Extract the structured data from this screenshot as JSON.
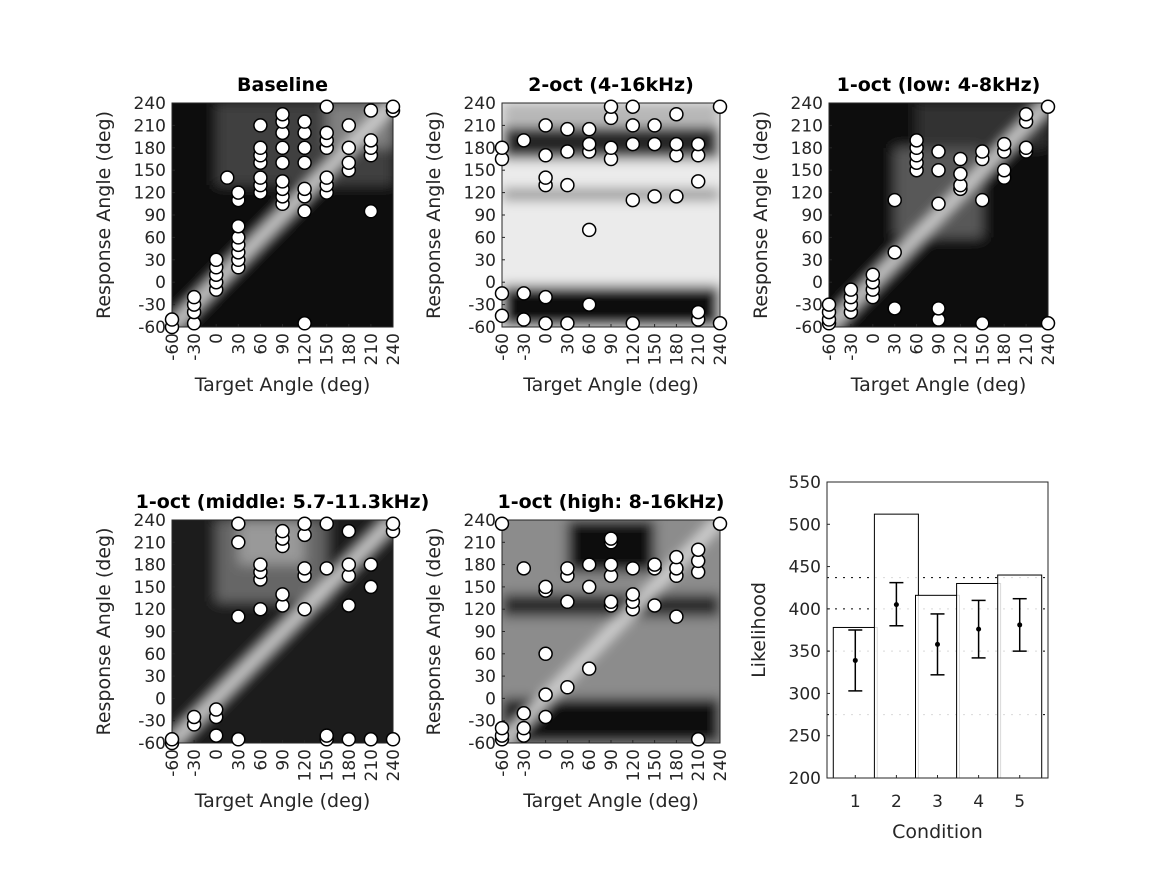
{
  "axis_labels": {
    "x": "Target Angle (deg)",
    "y": "Response Angle (deg)"
  },
  "chart_data": [
    {
      "type": "heatmap",
      "title": "Baseline",
      "xlabel": "Target Angle (deg)",
      "ylabel": "Response Angle (deg)",
      "xlim": [
        -60,
        240
      ],
      "ylim": [
        -60,
        240
      ],
      "ticks": [
        -60,
        -30,
        0,
        30,
        60,
        90,
        120,
        150,
        180,
        210,
        240
      ],
      "shading": [
        {
          "x": [
            -60,
            240
          ],
          "y": [
            -60,
            240
          ],
          "level": 0.05
        },
        {
          "x": [
            0,
            240
          ],
          "y": [
            130,
            240
          ],
          "level": 0.25
        },
        {
          "x": [
            150,
            240
          ],
          "y": [
            180,
            240
          ],
          "level": 0.5
        }
      ],
      "diagonal": true,
      "points": [
        [
          -60,
          -60
        ],
        [
          -60,
          -50
        ],
        [
          -30,
          -55
        ],
        [
          -30,
          -40
        ],
        [
          -30,
          -30
        ],
        [
          -30,
          -20
        ],
        [
          0,
          -10
        ],
        [
          0,
          0
        ],
        [
          0,
          10
        ],
        [
          0,
          20
        ],
        [
          0,
          30
        ],
        [
          15,
          140
        ],
        [
          30,
          20
        ],
        [
          30,
          30
        ],
        [
          30,
          40
        ],
        [
          30,
          50
        ],
        [
          30,
          60
        ],
        [
          30,
          75
        ],
        [
          30,
          110
        ],
        [
          30,
          120
        ],
        [
          60,
          120
        ],
        [
          60,
          130
        ],
        [
          60,
          140
        ],
        [
          60,
          160
        ],
        [
          60,
          170
        ],
        [
          60,
          180
        ],
        [
          60,
          210
        ],
        [
          90,
          105
        ],
        [
          90,
          115
        ],
        [
          90,
          125
        ],
        [
          90,
          135
        ],
        [
          90,
          160
        ],
        [
          90,
          180
        ],
        [
          90,
          200
        ],
        [
          90,
          215
        ],
        [
          90,
          225
        ],
        [
          120,
          95
        ],
        [
          120,
          115
        ],
        [
          120,
          125
        ],
        [
          120,
          160
        ],
        [
          120,
          180
        ],
        [
          120,
          200
        ],
        [
          120,
          215
        ],
        [
          120,
          -55
        ],
        [
          150,
          120
        ],
        [
          150,
          130
        ],
        [
          150,
          140
        ],
        [
          150,
          180
        ],
        [
          150,
          190
        ],
        [
          150,
          200
        ],
        [
          150,
          235
        ],
        [
          180,
          150
        ],
        [
          180,
          160
        ],
        [
          180,
          180
        ],
        [
          180,
          210
        ],
        [
          210,
          95
        ],
        [
          210,
          170
        ],
        [
          210,
          180
        ],
        [
          210,
          190
        ],
        [
          210,
          230
        ],
        [
          240,
          230
        ],
        [
          240,
          235
        ]
      ]
    },
    {
      "type": "heatmap",
      "title": "2-oct (4-16kHz)",
      "xlabel": "Target Angle (deg)",
      "ylabel": "Response Angle (deg)",
      "xlim": [
        -60,
        240
      ],
      "ylim": [
        -60,
        240
      ],
      "ticks": [
        -60,
        -30,
        0,
        30,
        60,
        90,
        120,
        150,
        180,
        210,
        240
      ],
      "shading": [
        {
          "x": [
            -60,
            240
          ],
          "y": [
            -60,
            240
          ],
          "level": 0.92
        },
        {
          "x": [
            -60,
            240
          ],
          "y": [
            -60,
            -5
          ],
          "level": 0.05
        },
        {
          "x": [
            -60,
            240
          ],
          "y": [
            165,
            210
          ],
          "level": 0.15
        },
        {
          "x": [
            -60,
            240
          ],
          "y": [
            110,
            125
          ],
          "level": 0.55
        },
        {
          "x": [
            -60,
            240
          ],
          "y": [
            215,
            240
          ],
          "level": 0.7
        }
      ],
      "diagonal": false,
      "points": [
        [
          -60,
          -45
        ],
        [
          -60,
          -15
        ],
        [
          -60,
          165
        ],
        [
          -60,
          180
        ],
        [
          -30,
          -50
        ],
        [
          -30,
          -15
        ],
        [
          -30,
          190
        ],
        [
          0,
          -55
        ],
        [
          0,
          -20
        ],
        [
          0,
          130
        ],
        [
          0,
          140
        ],
        [
          0,
          170
        ],
        [
          0,
          210
        ],
        [
          30,
          -55
        ],
        [
          30,
          130
        ],
        [
          30,
          175
        ],
        [
          30,
          205
        ],
        [
          60,
          -30
        ],
        [
          60,
          70
        ],
        [
          60,
          175
        ],
        [
          60,
          185
        ],
        [
          60,
          205
        ],
        [
          90,
          165
        ],
        [
          90,
          180
        ],
        [
          90,
          220
        ],
        [
          90,
          235
        ],
        [
          120,
          -55
        ],
        [
          120,
          110
        ],
        [
          120,
          185
        ],
        [
          120,
          210
        ],
        [
          120,
          235
        ],
        [
          150,
          115
        ],
        [
          150,
          185
        ],
        [
          150,
          210
        ],
        [
          180,
          115
        ],
        [
          180,
          170
        ],
        [
          180,
          185
        ],
        [
          180,
          225
        ],
        [
          210,
          -50
        ],
        [
          210,
          -40
        ],
        [
          210,
          135
        ],
        [
          210,
          170
        ],
        [
          210,
          185
        ],
        [
          240,
          -55
        ],
        [
          240,
          235
        ]
      ]
    },
    {
      "type": "heatmap",
      "title": "1-oct (low: 4-8kHz)",
      "xlabel": "Target Angle (deg)",
      "ylabel": "Response Angle (deg)",
      "xlim": [
        -60,
        240
      ],
      "ylim": [
        -60,
        240
      ],
      "ticks": [
        -60,
        -30,
        0,
        30,
        60,
        90,
        120,
        150,
        180,
        210,
        240
      ],
      "shading": [
        {
          "x": [
            -60,
            240
          ],
          "y": [
            -60,
            240
          ],
          "level": 0.05
        },
        {
          "x": [
            30,
            150
          ],
          "y": [
            60,
            180
          ],
          "level": 0.35
        },
        {
          "x": [
            60,
            240
          ],
          "y": [
            180,
            240
          ],
          "level": 0.2
        }
      ],
      "diagonal": true,
      "points": [
        [
          -60,
          -55
        ],
        [
          -60,
          -50
        ],
        [
          -60,
          -40
        ],
        [
          -60,
          -30
        ],
        [
          -30,
          -40
        ],
        [
          -30,
          -30
        ],
        [
          -30,
          -20
        ],
        [
          -30,
          -10
        ],
        [
          0,
          -20
        ],
        [
          0,
          -10
        ],
        [
          0,
          0
        ],
        [
          0,
          10
        ],
        [
          30,
          -35
        ],
        [
          30,
          40
        ],
        [
          30,
          110
        ],
        [
          60,
          150
        ],
        [
          60,
          160
        ],
        [
          60,
          170
        ],
        [
          60,
          180
        ],
        [
          60,
          190
        ],
        [
          90,
          -50
        ],
        [
          90,
          -35
        ],
        [
          90,
          105
        ],
        [
          90,
          150
        ],
        [
          90,
          175
        ],
        [
          120,
          125
        ],
        [
          120,
          130
        ],
        [
          120,
          145
        ],
        [
          120,
          165
        ],
        [
          150,
          -55
        ],
        [
          150,
          110
        ],
        [
          150,
          165
        ],
        [
          150,
          175
        ],
        [
          180,
          140
        ],
        [
          180,
          150
        ],
        [
          180,
          175
        ],
        [
          180,
          185
        ],
        [
          210,
          175
        ],
        [
          210,
          180
        ],
        [
          210,
          215
        ],
        [
          210,
          225
        ],
        [
          240,
          -55
        ],
        [
          240,
          235
        ]
      ]
    },
    {
      "type": "heatmap",
      "title": "1-oct (middle: 5.7-11.3kHz)",
      "xlabel": "Target Angle (deg)",
      "ylabel": "Response Angle (deg)",
      "xlim": [
        -60,
        240
      ],
      "ylim": [
        -60,
        240
      ],
      "ticks": [
        -60,
        -30,
        0,
        30,
        60,
        90,
        120,
        150,
        180,
        210,
        240
      ],
      "shading": [
        {
          "x": [
            -60,
            240
          ],
          "y": [
            -60,
            240
          ],
          "level": 0.1
        },
        {
          "x": [
            0,
            150
          ],
          "y": [
            130,
            240
          ],
          "level": 0.4
        },
        {
          "x": [
            30,
            120
          ],
          "y": [
            180,
            240
          ],
          "level": 0.6
        }
      ],
      "diagonal": true,
      "points": [
        [
          -60,
          -60
        ],
        [
          -60,
          -55
        ],
        [
          -30,
          -35
        ],
        [
          -30,
          -25
        ],
        [
          0,
          -50
        ],
        [
          0,
          -25
        ],
        [
          0,
          -15
        ],
        [
          30,
          -55
        ],
        [
          30,
          110
        ],
        [
          30,
          210
        ],
        [
          30,
          235
        ],
        [
          60,
          120
        ],
        [
          60,
          160
        ],
        [
          60,
          170
        ],
        [
          60,
          180
        ],
        [
          90,
          125
        ],
        [
          90,
          140
        ],
        [
          90,
          205
        ],
        [
          90,
          215
        ],
        [
          90,
          225
        ],
        [
          120,
          120
        ],
        [
          120,
          165
        ],
        [
          120,
          175
        ],
        [
          120,
          220
        ],
        [
          120,
          235
        ],
        [
          150,
          -55
        ],
        [
          150,
          -50
        ],
        [
          150,
          175
        ],
        [
          150,
          235
        ],
        [
          180,
          -55
        ],
        [
          180,
          125
        ],
        [
          180,
          165
        ],
        [
          180,
          180
        ],
        [
          180,
          225
        ],
        [
          210,
          -55
        ],
        [
          210,
          150
        ],
        [
          210,
          180
        ],
        [
          240,
          -55
        ],
        [
          240,
          225
        ],
        [
          240,
          235
        ]
      ]
    },
    {
      "type": "heatmap",
      "title": "1-oct (high: 8-16kHz)",
      "xlabel": "Target Angle (deg)",
      "ylabel": "Response Angle (deg)",
      "xlim": [
        -60,
        240
      ],
      "ylim": [
        -60,
        240
      ],
      "ticks": [
        -60,
        -30,
        0,
        30,
        60,
        90,
        120,
        150,
        180,
        210,
        240
      ],
      "shading": [
        {
          "x": [
            -60,
            240
          ],
          "y": [
            -60,
            240
          ],
          "level": 0.55
        },
        {
          "x": [
            -60,
            240
          ],
          "y": [
            -60,
            0
          ],
          "level": 0.05
        },
        {
          "x": [
            30,
            150
          ],
          "y": [
            170,
            240
          ],
          "level": 0.05
        },
        {
          "x": [
            -60,
            240
          ],
          "y": [
            110,
            140
          ],
          "level": 0.15
        }
      ],
      "diagonal": true,
      "points": [
        [
          -60,
          -55
        ],
        [
          -60,
          -50
        ],
        [
          -60,
          -40
        ],
        [
          -60,
          235
        ],
        [
          -30,
          -50
        ],
        [
          -30,
          -40
        ],
        [
          -30,
          -20
        ],
        [
          -30,
          175
        ],
        [
          0,
          -25
        ],
        [
          0,
          5
        ],
        [
          0,
          60
        ],
        [
          0,
          145
        ],
        [
          0,
          150
        ],
        [
          30,
          15
        ],
        [
          30,
          130
        ],
        [
          30,
          165
        ],
        [
          30,
          175
        ],
        [
          60,
          40
        ],
        [
          60,
          150
        ],
        [
          60,
          180
        ],
        [
          90,
          125
        ],
        [
          90,
          130
        ],
        [
          90,
          165
        ],
        [
          90,
          180
        ],
        [
          90,
          210
        ],
        [
          90,
          215
        ],
        [
          120,
          120
        ],
        [
          120,
          130
        ],
        [
          120,
          140
        ],
        [
          120,
          175
        ],
        [
          150,
          125
        ],
        [
          150,
          175
        ],
        [
          150,
          180
        ],
        [
          180,
          110
        ],
        [
          180,
          165
        ],
        [
          180,
          175
        ],
        [
          180,
          190
        ],
        [
          210,
          -55
        ],
        [
          210,
          170
        ],
        [
          210,
          185
        ],
        [
          210,
          200
        ],
        [
          240,
          235
        ]
      ]
    },
    {
      "type": "bar",
      "title": "",
      "xlabel": "Condition",
      "ylabel": "Likelihood",
      "ylim": [
        200,
        550
      ],
      "categories": [
        "1",
        "2",
        "3",
        "4",
        "5"
      ],
      "values": [
        378,
        512,
        416,
        430,
        440
      ],
      "means": [
        339,
        405,
        358,
        376,
        381
      ],
      "err_low": [
        303,
        380,
        322,
        342,
        350
      ],
      "err_high": [
        375,
        431,
        394,
        410,
        412
      ],
      "ref_lines": [
        437,
        400,
        350,
        275
      ],
      "yticks": [
        200,
        250,
        300,
        350,
        400,
        450,
        500,
        550
      ]
    }
  ]
}
